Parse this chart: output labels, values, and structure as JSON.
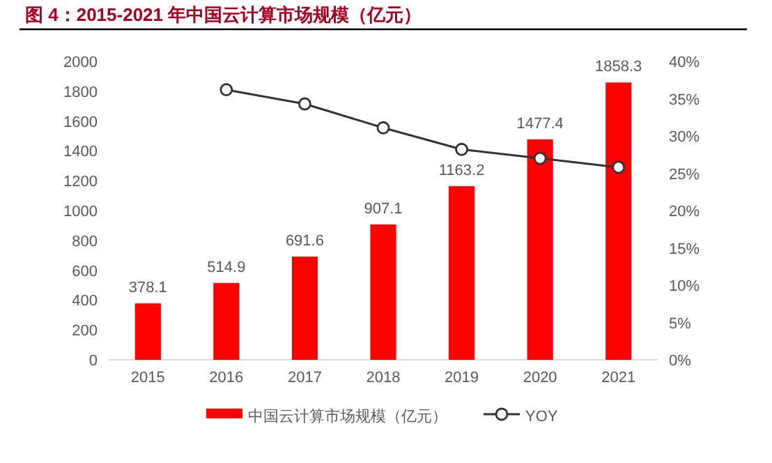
{
  "chart_data": {
    "type": "bar",
    "title": "图 4：2015-2021 年中国云计算市场规模（亿元）",
    "categories": [
      "2015",
      "2016",
      "2017",
      "2018",
      "2019",
      "2020",
      "2021"
    ],
    "series": [
      {
        "name": "中国云计算市场规模（亿元）",
        "color": "#ff0000",
        "values": [
          378.1,
          514.9,
          691.6,
          907.1,
          1163.2,
          1477.4,
          1858.3
        ],
        "value_labels": [
          "378.1",
          "514.9",
          "691.6",
          "907.1",
          "1163.2",
          "1477.4",
          "1858.3"
        ]
      },
      {
        "name": "YOY",
        "type": "line",
        "axis": "y2",
        "color": "#333333",
        "marker": "circle",
        "values": [
          null,
          36.2,
          34.3,
          31.1,
          28.2,
          27.0,
          25.8
        ]
      }
    ],
    "ylim": [
      0,
      2000
    ],
    "yticks": [
      0,
      200,
      400,
      600,
      800,
      1000,
      1200,
      1400,
      1600,
      1800,
      2000
    ],
    "y2lim": [
      0,
      40
    ],
    "y2ticks": [
      {
        "value": 0,
        "label": "0%"
      },
      {
        "value": 5,
        "label": "5%"
      },
      {
        "value": 10,
        "label": "10%"
      },
      {
        "value": 15,
        "label": "15%"
      },
      {
        "value": 20,
        "label": "20%"
      },
      {
        "value": 25,
        "label": "25%"
      },
      {
        "value": 30,
        "label": "30%"
      },
      {
        "value": 35,
        "label": "35%"
      },
      {
        "value": 40,
        "label": "40%"
      }
    ],
    "legend": "bottom",
    "grid": false
  }
}
